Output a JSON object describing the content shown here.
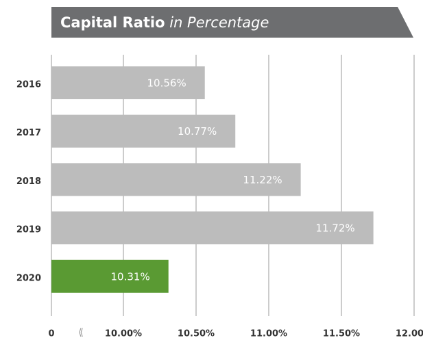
{
  "chart_data": {
    "type": "bar",
    "orientation": "horizontal",
    "title": "Capital Ratio",
    "subtitle": "in Percentage",
    "categories": [
      "2016",
      "2017",
      "2018",
      "2019",
      "2020"
    ],
    "values": [
      10.56,
      10.77,
      11.22,
      11.72,
      10.31
    ],
    "value_labels": [
      "10.56%",
      "10.77%",
      "11.22%",
      "11.72%",
      "10.31%"
    ],
    "colors": [
      "#bcbcbc",
      "#bcbcbc",
      "#bcbcbc",
      "#bcbcbc",
      "#5a9a33"
    ],
    "xlim": [
      0,
      12
    ],
    "axis_break": [
      0,
      10
    ],
    "xticks": [
      0,
      {
        "value": 10,
        "label": "10.00%"
      },
      {
        "value": 10.5,
        "label": "10.50%"
      },
      {
        "value": 11,
        "label": "11.00%"
      },
      {
        "value": 11.5,
        "label": "11.50%"
      },
      {
        "value": 12,
        "label": "12.00%"
      }
    ],
    "grid": true
  }
}
